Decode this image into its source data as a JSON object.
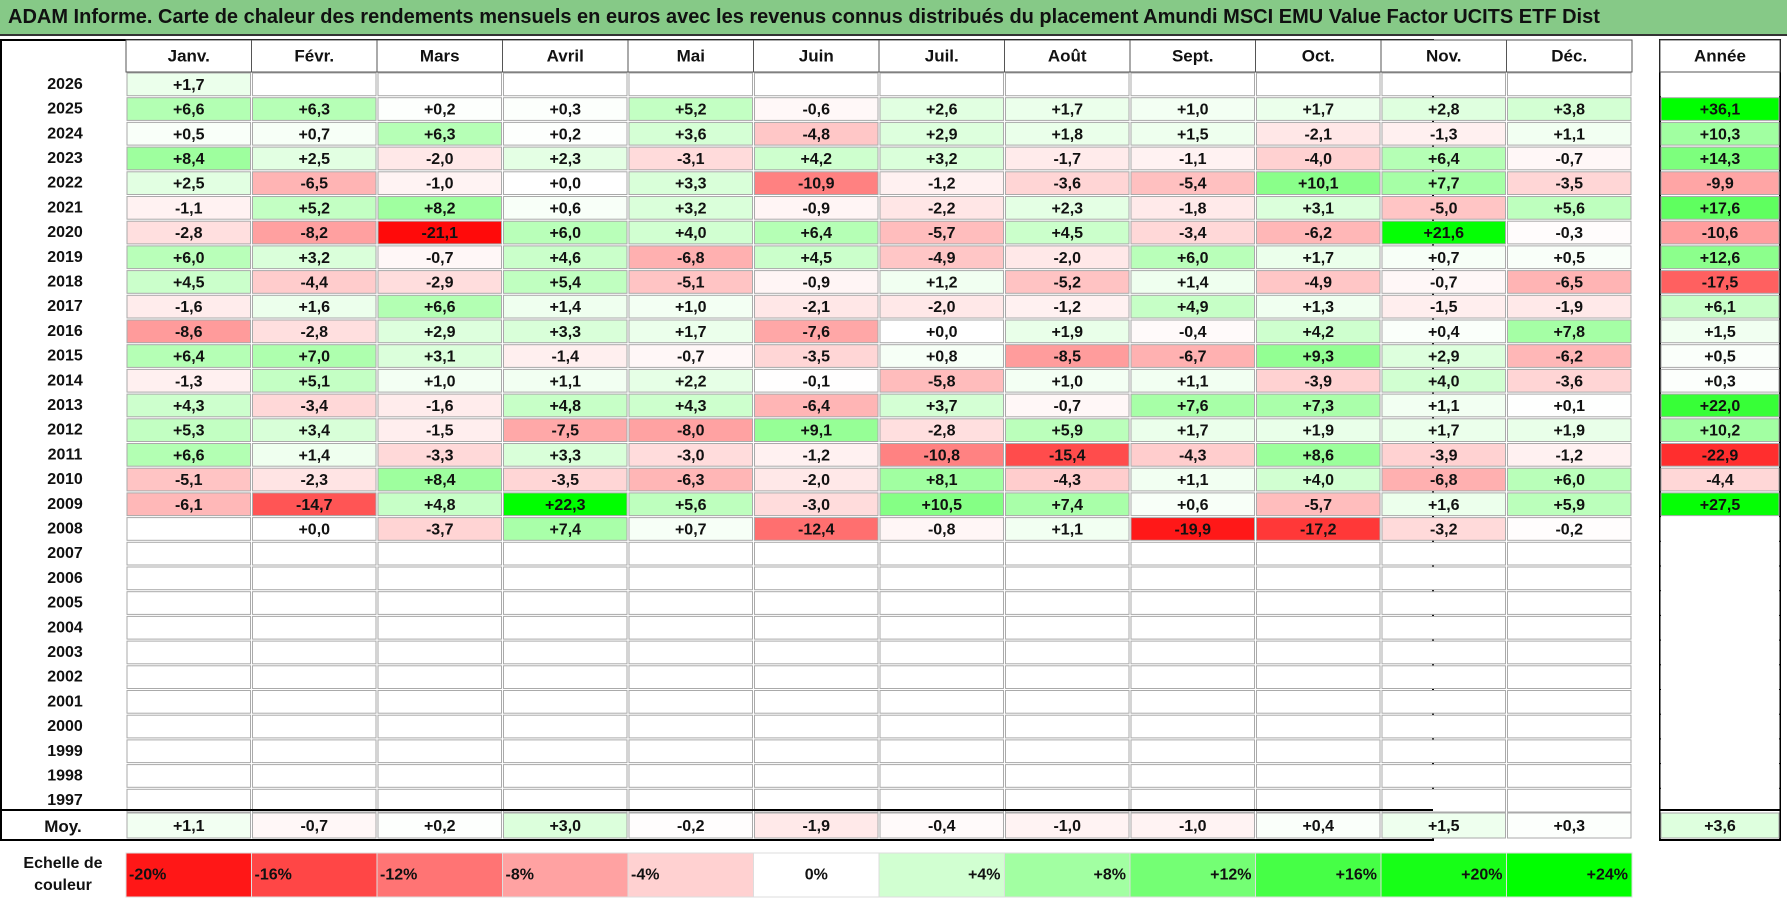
{
  "title": "ADAM Informe. Carte de chaleur des rendements mensuels en euros avec les revenus connus distribués du placement Amundi MSCI EMU Value Factor UCITS ETF Dist",
  "colors": {
    "title_bg": "#86c987",
    "positive_max": "#00ff00",
    "negative_max": "#ff0000",
    "neutral": "#ffffff"
  },
  "chart_data": {
    "type": "heatmap",
    "months": [
      "Janv.",
      "Févr.",
      "Mars",
      "Avril",
      "Mai",
      "Juin",
      "Juil.",
      "Août",
      "Sept.",
      "Oct.",
      "Nov.",
      "Déc."
    ],
    "year_header": "Année",
    "average_label": "Moy.",
    "rows": [
      {
        "year": "2026",
        "values": [
          "+1,7",
          "",
          "",
          "",
          "",
          "",
          "",
          "",
          "",
          "",
          "",
          ""
        ],
        "annual": ""
      },
      {
        "year": "2025",
        "values": [
          "+6,6",
          "+6,3",
          "+0,2",
          "+0,3",
          "+5,2",
          "-0,6",
          "+2,6",
          "+1,7",
          "+1,0",
          "+1,7",
          "+2,8",
          "+3,8"
        ],
        "annual": "+36,1"
      },
      {
        "year": "2024",
        "values": [
          "+0,5",
          "+0,7",
          "+6,3",
          "+0,2",
          "+3,6",
          "-4,8",
          "+2,9",
          "+1,8",
          "+1,5",
          "-2,1",
          "-1,3",
          "+1,1"
        ],
        "annual": "+10,3"
      },
      {
        "year": "2023",
        "values": [
          "+8,4",
          "+2,5",
          "-2,0",
          "+2,3",
          "-3,1",
          "+4,2",
          "+3,2",
          "-1,7",
          "-1,1",
          "-4,0",
          "+6,4",
          "-0,7"
        ],
        "annual": "+14,3"
      },
      {
        "year": "2022",
        "values": [
          "+2,5",
          "-6,5",
          "-1,0",
          "+0,0",
          "+3,3",
          "-10,9",
          "-1,2",
          "-3,6",
          "-5,4",
          "+10,1",
          "+7,7",
          "-3,5"
        ],
        "annual": "-9,9"
      },
      {
        "year": "2021",
        "values": [
          "-1,1",
          "+5,2",
          "+8,2",
          "+0,6",
          "+3,2",
          "-0,9",
          "-2,2",
          "+2,3",
          "-1,8",
          "+3,1",
          "-5,0",
          "+5,6"
        ],
        "annual": "+17,6"
      },
      {
        "year": "2020",
        "values": [
          "-2,8",
          "-8,2",
          "-21,1",
          "+6,0",
          "+4,0",
          "+6,4",
          "-5,7",
          "+4,5",
          "-3,4",
          "-6,2",
          "+21,6",
          "-0,3"
        ],
        "annual": "-10,6"
      },
      {
        "year": "2019",
        "values": [
          "+6,0",
          "+3,2",
          "-0,7",
          "+4,6",
          "-6,8",
          "+4,5",
          "-4,9",
          "-2,0",
          "+6,0",
          "+1,7",
          "+0,7",
          "+0,5"
        ],
        "annual": "+12,6"
      },
      {
        "year": "2018",
        "values": [
          "+4,5",
          "-4,4",
          "-2,9",
          "+5,4",
          "-5,1",
          "-0,9",
          "+1,2",
          "-5,2",
          "+1,4",
          "-4,9",
          "-0,7",
          "-6,5"
        ],
        "annual": "-17,5"
      },
      {
        "year": "2017",
        "values": [
          "-1,6",
          "+1,6",
          "+6,6",
          "+1,4",
          "+1,0",
          "-2,1",
          "-2,0",
          "-1,2",
          "+4,9",
          "+1,3",
          "-1,5",
          "-1,9"
        ],
        "annual": "+6,1"
      },
      {
        "year": "2016",
        "values": [
          "-8,6",
          "-2,8",
          "+2,9",
          "+3,3",
          "+1,7",
          "-7,6",
          "+0,0",
          "+1,9",
          "-0,4",
          "+4,2",
          "+0,4",
          "+7,8"
        ],
        "annual": "+1,5"
      },
      {
        "year": "2015",
        "values": [
          "+6,4",
          "+7,0",
          "+3,1",
          "-1,4",
          "-0,7",
          "-3,5",
          "+0,8",
          "-8,5",
          "-6,7",
          "+9,3",
          "+2,9",
          "-6,2"
        ],
        "annual": "+0,5"
      },
      {
        "year": "2014",
        "values": [
          "-1,3",
          "+5,1",
          "+1,0",
          "+1,1",
          "+2,2",
          "-0,1",
          "-5,8",
          "+1,0",
          "+1,1",
          "-3,9",
          "+4,0",
          "-3,6"
        ],
        "annual": "+0,3"
      },
      {
        "year": "2013",
        "values": [
          "+4,3",
          "-3,4",
          "-1,6",
          "+4,8",
          "+4,3",
          "-6,4",
          "+3,7",
          "-0,7",
          "+7,6",
          "+7,3",
          "+1,1",
          "+0,1"
        ],
        "annual": "+22,0"
      },
      {
        "year": "2012",
        "values": [
          "+5,3",
          "+3,4",
          "-1,5",
          "-7,5",
          "-8,0",
          "+9,1",
          "-2,8",
          "+5,9",
          "+1,7",
          "+1,9",
          "+1,7",
          "+1,9"
        ],
        "annual": "+10,2"
      },
      {
        "year": "2011",
        "values": [
          "+6,6",
          "+1,4",
          "-3,3",
          "+3,3",
          "-3,0",
          "-1,2",
          "-10,8",
          "-15,4",
          "-4,3",
          "+8,6",
          "-3,9",
          "-1,2"
        ],
        "annual": "-22,9"
      },
      {
        "year": "2010",
        "values": [
          "-5,1",
          "-2,3",
          "+8,4",
          "-3,5",
          "-6,3",
          "-2,0",
          "+8,1",
          "-4,3",
          "+1,1",
          "+4,0",
          "-6,8",
          "+6,0"
        ],
        "annual": "-4,4"
      },
      {
        "year": "2009",
        "values": [
          "-6,1",
          "-14,7",
          "+4,8",
          "+22,3",
          "+5,6",
          "-3,0",
          "+10,5",
          "+7,4",
          "+0,6",
          "-5,7",
          "+1,6",
          "+5,9"
        ],
        "annual": "+27,5"
      },
      {
        "year": "2008",
        "values": [
          "",
          "+0,0",
          "-3,7",
          "+7,4",
          "+0,7",
          "-12,4",
          "-0,8",
          "+1,1",
          "-19,9",
          "-17,2",
          "-3,2",
          "-0,2"
        ],
        "annual": ""
      },
      {
        "year": "2007",
        "values": [
          "",
          "",
          "",
          "",
          "",
          "",
          "",
          "",
          "",
          "",
          "",
          ""
        ],
        "annual": ""
      },
      {
        "year": "2006",
        "values": [
          "",
          "",
          "",
          "",
          "",
          "",
          "",
          "",
          "",
          "",
          "",
          ""
        ],
        "annual": ""
      },
      {
        "year": "2005",
        "values": [
          "",
          "",
          "",
          "",
          "",
          "",
          "",
          "",
          "",
          "",
          "",
          ""
        ],
        "annual": ""
      },
      {
        "year": "2004",
        "values": [
          "",
          "",
          "",
          "",
          "",
          "",
          "",
          "",
          "",
          "",
          "",
          ""
        ],
        "annual": ""
      },
      {
        "year": "2003",
        "values": [
          "",
          "",
          "",
          "",
          "",
          "",
          "",
          "",
          "",
          "",
          "",
          ""
        ],
        "annual": ""
      },
      {
        "year": "2002",
        "values": [
          "",
          "",
          "",
          "",
          "",
          "",
          "",
          "",
          "",
          "",
          "",
          ""
        ],
        "annual": ""
      },
      {
        "year": "2001",
        "values": [
          "",
          "",
          "",
          "",
          "",
          "",
          "",
          "",
          "",
          "",
          "",
          ""
        ],
        "annual": ""
      },
      {
        "year": "2000",
        "values": [
          "",
          "",
          "",
          "",
          "",
          "",
          "",
          "",
          "",
          "",
          "",
          ""
        ],
        "annual": ""
      },
      {
        "year": "1999",
        "values": [
          "",
          "",
          "",
          "",
          "",
          "",
          "",
          "",
          "",
          "",
          "",
          ""
        ],
        "annual": ""
      },
      {
        "year": "1998",
        "values": [
          "",
          "",
          "",
          "",
          "",
          "",
          "",
          "",
          "",
          "",
          "",
          ""
        ],
        "annual": ""
      },
      {
        "year": "1997",
        "values": [
          "",
          "",
          "",
          "",
          "",
          "",
          "",
          "",
          "",
          "",
          "",
          ""
        ],
        "annual": ""
      }
    ],
    "averages": [
      "+1,1",
      "-0,7",
      "+0,2",
      "+3,0",
      "-0,2",
      "-1,9",
      "-0,4",
      "-1,0",
      "-1,0",
      "+0,4",
      "+1,5",
      "+0,3"
    ],
    "average_annual": "+3,6",
    "scale_label": "Echelle de couleur",
    "scale_labels": [
      "-20%",
      "-16%",
      "-12%",
      "-8%",
      "-4%",
      "0%",
      "+4%",
      "+8%",
      "+12%",
      "+16%",
      "+20%",
      "+24%"
    ],
    "scale_values": [
      -20,
      -16,
      -12,
      -8,
      -4,
      0,
      4,
      8,
      12,
      16,
      20,
      24
    ]
  }
}
